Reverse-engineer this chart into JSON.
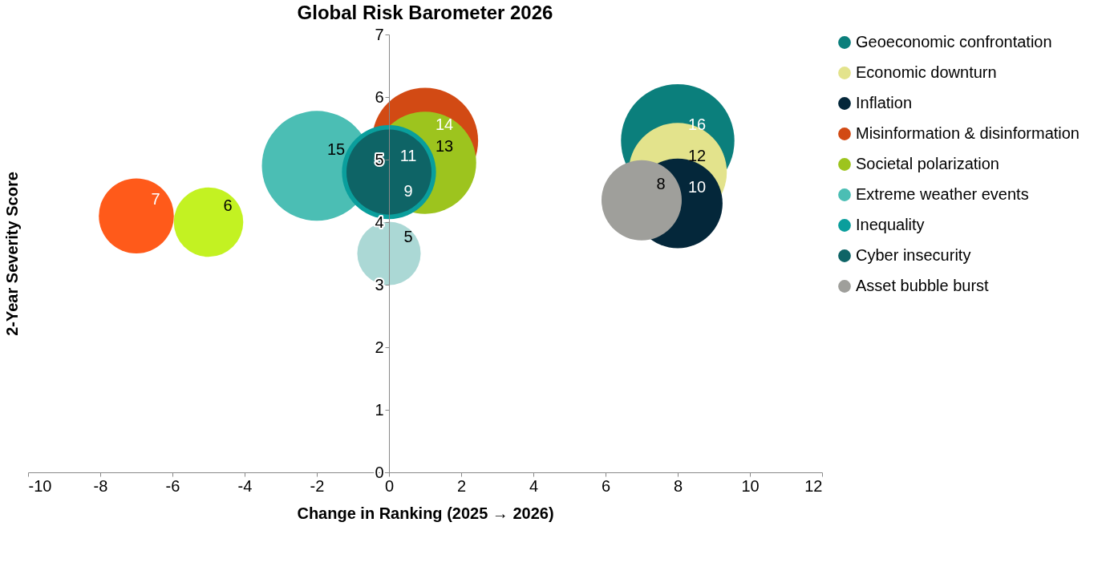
{
  "chart_data": {
    "type": "bubble",
    "title": "Global Risk Barometer 2026",
    "xlabel": "Change in Ranking (2025 → 2026)",
    "ylabel": "2-Year Severity Score",
    "xlim": [
      -10,
      12
    ],
    "xticks": [
      -10,
      -8,
      -6,
      -4,
      -2,
      0,
      2,
      4,
      6,
      8,
      10,
      12
    ],
    "ylim": [
      0,
      7
    ],
    "yticks": [
      0,
      1,
      2,
      3,
      4,
      5,
      6,
      7
    ],
    "legend": "right",
    "series": [
      {
        "name": "Geoeconomic confrontation",
        "color": "#0b7f7c",
        "x": [
          8
        ],
        "values": [
          5.3
        ],
        "sizes": [
          16
        ],
        "value_labels": [
          "16"
        ]
      },
      {
        "name": "Economic downturn",
        "color": "#e3e38c",
        "x": [
          8
        ],
        "values": [
          4.8
        ],
        "sizes": [
          12
        ],
        "value_labels": [
          "12"
        ]
      },
      {
        "name": "Inflation",
        "color": "#04273a",
        "x": [
          8
        ],
        "values": [
          4.3
        ],
        "sizes": [
          10
        ],
        "value_labels": [
          "10"
        ]
      },
      {
        "name": "Misinformation & disinformation",
        "color": "#d24a14",
        "x": [
          1
        ],
        "values": [
          5.3
        ],
        "sizes": [
          14
        ],
        "value_labels": [
          "14"
        ]
      },
      {
        "name": "Societal polarization",
        "color": "#9dc41e",
        "x": [
          1
        ],
        "values": [
          4.95
        ],
        "sizes": [
          13
        ],
        "value_labels": [
          "13"
        ]
      },
      {
        "name": "Extreme weather events",
        "color": "#4bbeb4",
        "x": [
          -2
        ],
        "values": [
          4.9
        ],
        "sizes": [
          15
        ],
        "value_labels": [
          "15"
        ]
      },
      {
        "name": "Inequality",
        "color": "#0a9e9c",
        "x": [
          0
        ],
        "values": [
          4.8
        ],
        "sizes": [
          11
        ],
        "value_labels": [
          "11"
        ]
      },
      {
        "name": "Cyber insecurity",
        "color": "#0e6466",
        "x": [
          0
        ],
        "values": [
          4.8
        ],
        "sizes": [
          9
        ],
        "value_labels": [
          "9"
        ]
      },
      {
        "name": "Asset bubble burst",
        "color": "#9f9f9b",
        "x": [
          7
        ],
        "values": [
          4.35
        ],
        "sizes": [
          8
        ],
        "value_labels": [
          "8"
        ]
      },
      {
        "color": "#ff5a1a",
        "x": [
          -7
        ],
        "values": [
          4.1
        ],
        "sizes": [
          7
        ],
        "value_labels": [
          "7"
        ]
      },
      {
        "color": "#c3f222",
        "x": [
          -5
        ],
        "values": [
          4.0
        ],
        "sizes": [
          6
        ],
        "value_labels": [
          "6"
        ]
      },
      {
        "color": "#abd8d5",
        "x": [
          0
        ],
        "values": [
          3.5
        ],
        "sizes": [
          5
        ],
        "value_labels": [
          "5"
        ]
      }
    ]
  }
}
